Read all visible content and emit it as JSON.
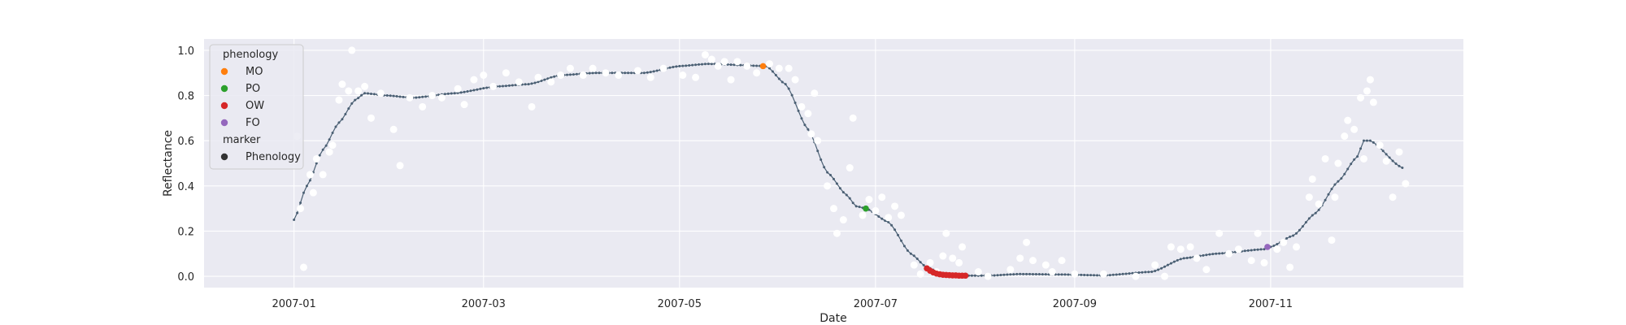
{
  "chart_data": {
    "type": "scatter",
    "xlabel": "Date",
    "ylabel": "Reflectance",
    "xlim": [
      "2006-12-04",
      "2007-12-31"
    ],
    "ylim": [
      -0.05,
      1.05
    ],
    "x_ticks": [
      "2007-01",
      "2007-03",
      "2007-05",
      "2007-07",
      "2007-09",
      "2007-11"
    ],
    "y_ticks": [
      "0.0",
      "0.2",
      "0.4",
      "0.6",
      "0.8",
      "1.0"
    ],
    "grid": true,
    "legend_position": "upper-left",
    "background_color": "#eaeaf2",
    "legend": {
      "hue_title": "phenology",
      "hue_entries": [
        {
          "label": "MO",
          "color": "#ff7f0e"
        },
        {
          "label": "PO",
          "color": "#2ca02c"
        },
        {
          "label": "OW",
          "color": "#d62728"
        },
        {
          "label": "FO",
          "color": "#9467bd"
        }
      ],
      "marker_title": "marker",
      "marker_entries": [
        {
          "label": "Phenology",
          "color": "#333333"
        }
      ]
    },
    "smoothed_curve": {
      "color": "#4a5f73",
      "points": [
        [
          "2007-01-01",
          0.25
        ],
        [
          "2007-01-05",
          0.4
        ],
        [
          "2007-01-10",
          0.56
        ],
        [
          "2007-01-15",
          0.68
        ],
        [
          "2007-01-20",
          0.78
        ],
        [
          "2007-01-23",
          0.81
        ],
        [
          "2007-01-30",
          0.8
        ],
        [
          "2007-02-07",
          0.79
        ],
        [
          "2007-02-20",
          0.81
        ],
        [
          "2007-03-05",
          0.84
        ],
        [
          "2007-03-15",
          0.85
        ],
        [
          "2007-03-25",
          0.89
        ],
        [
          "2007-04-05",
          0.9
        ],
        [
          "2007-04-20",
          0.9
        ],
        [
          "2007-05-01",
          0.93
        ],
        [
          "2007-05-10",
          0.94
        ],
        [
          "2007-05-28",
          0.93
        ],
        [
          "2007-06-03",
          0.85
        ],
        [
          "2007-06-10",
          0.65
        ],
        [
          "2007-06-16",
          0.46
        ],
        [
          "2007-06-22",
          0.36
        ],
        [
          "2007-06-25",
          0.31
        ],
        [
          "2007-06-28",
          0.3
        ],
        [
          "2007-07-05",
          0.24
        ],
        [
          "2007-07-12",
          0.1
        ],
        [
          "2007-07-17",
          0.04
        ],
        [
          "2007-07-22",
          0.01
        ],
        [
          "2007-07-27",
          0.003
        ],
        [
          "2007-08-05",
          0.003
        ],
        [
          "2007-08-15",
          0.01
        ],
        [
          "2007-08-28",
          0.008
        ],
        [
          "2007-09-10",
          0.004
        ],
        [
          "2007-09-25",
          0.02
        ],
        [
          "2007-10-05",
          0.08
        ],
        [
          "2007-10-15",
          0.1
        ],
        [
          "2007-10-30",
          0.12
        ],
        [
          "2007-11-01",
          0.13
        ],
        [
          "2007-11-08",
          0.18
        ],
        [
          "2007-11-15",
          0.28
        ],
        [
          "2007-11-22",
          0.42
        ],
        [
          "2007-11-28",
          0.53
        ],
        [
          "2007-11-30",
          0.6
        ],
        [
          "2007-12-02",
          0.6
        ],
        [
          "2007-12-12",
          0.48
        ]
      ]
    },
    "observations": {
      "color": "#ffffff",
      "points": [
        [
          "2007-01-02",
          0.62
        ],
        [
          "2007-01-03",
          0.3
        ],
        [
          "2007-01-04",
          0.04
        ],
        [
          "2007-01-06",
          0.45
        ],
        [
          "2007-01-07",
          0.37
        ],
        [
          "2007-01-08",
          0.52
        ],
        [
          "2007-01-10",
          0.45
        ],
        [
          "2007-01-12",
          0.55
        ],
        [
          "2007-01-13",
          0.58
        ],
        [
          "2007-01-15",
          0.78
        ],
        [
          "2007-01-16",
          0.85
        ],
        [
          "2007-01-18",
          0.82
        ],
        [
          "2007-01-19",
          1.0
        ],
        [
          "2007-01-21",
          0.82
        ],
        [
          "2007-01-23",
          0.84
        ],
        [
          "2007-01-25",
          0.7
        ],
        [
          "2007-01-28",
          0.81
        ],
        [
          "2007-02-01",
          0.65
        ],
        [
          "2007-02-03",
          0.49
        ],
        [
          "2007-02-06",
          0.79
        ],
        [
          "2007-02-10",
          0.75
        ],
        [
          "2007-02-13",
          0.8
        ],
        [
          "2007-02-16",
          0.79
        ],
        [
          "2007-02-21",
          0.83
        ],
        [
          "2007-02-23",
          0.76
        ],
        [
          "2007-02-26",
          0.87
        ],
        [
          "2007-03-01",
          0.89
        ],
        [
          "2007-03-04",
          0.84
        ],
        [
          "2007-03-08",
          0.9
        ],
        [
          "2007-03-12",
          0.86
        ],
        [
          "2007-03-16",
          0.75
        ],
        [
          "2007-03-18",
          0.88
        ],
        [
          "2007-03-22",
          0.86
        ],
        [
          "2007-03-25",
          0.89
        ],
        [
          "2007-03-28",
          0.92
        ],
        [
          "2007-04-01",
          0.89
        ],
        [
          "2007-04-04",
          0.92
        ],
        [
          "2007-04-08",
          0.9
        ],
        [
          "2007-04-12",
          0.89
        ],
        [
          "2007-04-18",
          0.91
        ],
        [
          "2007-04-22",
          0.88
        ],
        [
          "2007-04-26",
          0.92
        ],
        [
          "2007-05-02",
          0.89
        ],
        [
          "2007-05-06",
          0.88
        ],
        [
          "2007-05-09",
          0.98
        ],
        [
          "2007-05-11",
          0.96
        ],
        [
          "2007-05-13",
          0.93
        ],
        [
          "2007-05-15",
          0.95
        ],
        [
          "2007-05-17",
          0.87
        ],
        [
          "2007-05-19",
          0.95
        ],
        [
          "2007-05-22",
          0.93
        ],
        [
          "2007-05-25",
          0.9
        ],
        [
          "2007-05-29",
          0.94
        ],
        [
          "2007-06-01",
          0.92
        ],
        [
          "2007-06-04",
          0.92
        ],
        [
          "2007-06-06",
          0.87
        ],
        [
          "2007-06-08",
          0.75
        ],
        [
          "2007-06-10",
          0.72
        ],
        [
          "2007-06-11",
          0.63
        ],
        [
          "2007-06-12",
          0.81
        ],
        [
          "2007-06-13",
          0.6
        ],
        [
          "2007-06-16",
          0.4
        ],
        [
          "2007-06-18",
          0.3
        ],
        [
          "2007-06-19",
          0.19
        ],
        [
          "2007-06-21",
          0.25
        ],
        [
          "2007-06-23",
          0.48
        ],
        [
          "2007-06-24",
          0.7
        ],
        [
          "2007-06-27",
          0.27
        ],
        [
          "2007-06-29",
          0.34
        ],
        [
          "2007-07-01",
          0.29
        ],
        [
          "2007-07-03",
          0.35
        ],
        [
          "2007-07-05",
          0.26
        ],
        [
          "2007-07-07",
          0.31
        ],
        [
          "2007-07-09",
          0.27
        ],
        [
          "2007-07-13",
          0.05
        ],
        [
          "2007-07-15",
          0.01
        ],
        [
          "2007-07-18",
          0.06
        ],
        [
          "2007-07-20",
          0.02
        ],
        [
          "2007-07-22",
          0.09
        ],
        [
          "2007-07-23",
          0.19
        ],
        [
          "2007-07-25",
          0.08
        ],
        [
          "2007-07-27",
          0.06
        ],
        [
          "2007-07-28",
          0.13
        ],
        [
          "2007-08-02",
          0.02
        ],
        [
          "2007-08-05",
          0.0
        ],
        [
          "2007-08-12",
          0.03
        ],
        [
          "2007-08-15",
          0.08
        ],
        [
          "2007-08-17",
          0.15
        ],
        [
          "2007-08-19",
          0.07
        ],
        [
          "2007-08-23",
          0.05
        ],
        [
          "2007-08-25",
          0.02
        ],
        [
          "2007-08-28",
          0.07
        ],
        [
          "2007-09-01",
          0.01
        ],
        [
          "2007-09-10",
          0.01
        ],
        [
          "2007-09-20",
          0.0
        ],
        [
          "2007-09-26",
          0.05
        ],
        [
          "2007-09-29",
          0.0
        ],
        [
          "2007-10-01",
          0.13
        ],
        [
          "2007-10-04",
          0.12
        ],
        [
          "2007-10-07",
          0.13
        ],
        [
          "2007-10-09",
          0.08
        ],
        [
          "2007-10-12",
          0.03
        ],
        [
          "2007-10-16",
          0.19
        ],
        [
          "2007-10-19",
          0.1
        ],
        [
          "2007-10-22",
          0.12
        ],
        [
          "2007-10-26",
          0.07
        ],
        [
          "2007-10-28",
          0.19
        ],
        [
          "2007-10-30",
          0.06
        ],
        [
          "2007-11-03",
          0.12
        ],
        [
          "2007-11-05",
          0.15
        ],
        [
          "2007-11-07",
          0.04
        ],
        [
          "2007-11-09",
          0.13
        ],
        [
          "2007-11-13",
          0.35
        ],
        [
          "2007-11-14",
          0.43
        ],
        [
          "2007-11-16",
          0.32
        ],
        [
          "2007-11-18",
          0.52
        ],
        [
          "2007-11-20",
          0.16
        ],
        [
          "2007-11-21",
          0.35
        ],
        [
          "2007-11-22",
          0.5
        ],
        [
          "2007-11-24",
          0.62
        ],
        [
          "2007-11-25",
          0.69
        ],
        [
          "2007-11-27",
          0.65
        ],
        [
          "2007-11-29",
          0.79
        ],
        [
          "2007-11-30",
          0.52
        ],
        [
          "2007-12-01",
          0.82
        ],
        [
          "2007-12-02",
          0.87
        ],
        [
          "2007-12-03",
          0.77
        ],
        [
          "2007-12-05",
          0.58
        ],
        [
          "2007-12-07",
          0.51
        ],
        [
          "2007-12-09",
          0.35
        ],
        [
          "2007-12-11",
          0.55
        ],
        [
          "2007-12-13",
          0.41
        ]
      ]
    },
    "phenology_points": [
      {
        "label": "MO",
        "color": "#ff7f0e",
        "x": [
          "2007-05-27"
        ],
        "y": [
          0.93
        ]
      },
      {
        "label": "PO",
        "color": "#2ca02c",
        "x": [
          "2007-06-28"
        ],
        "y": [
          0.3
        ]
      },
      {
        "label": "OW",
        "color": "#d62728",
        "x": [
          "2007-07-17",
          "2007-07-18",
          "2007-07-19",
          "2007-07-20",
          "2007-07-21",
          "2007-07-22",
          "2007-07-23",
          "2007-07-24",
          "2007-07-25",
          "2007-07-26",
          "2007-07-27",
          "2007-07-28",
          "2007-07-29"
        ],
        "y": [
          0.035,
          0.025,
          0.017,
          0.012,
          0.009,
          0.007,
          0.006,
          0.005,
          0.004,
          0.004,
          0.003,
          0.003,
          0.003
        ]
      },
      {
        "label": "FO",
        "color": "#9467bd",
        "x": [
          "2007-10-31"
        ],
        "y": [
          0.13
        ]
      }
    ]
  }
}
